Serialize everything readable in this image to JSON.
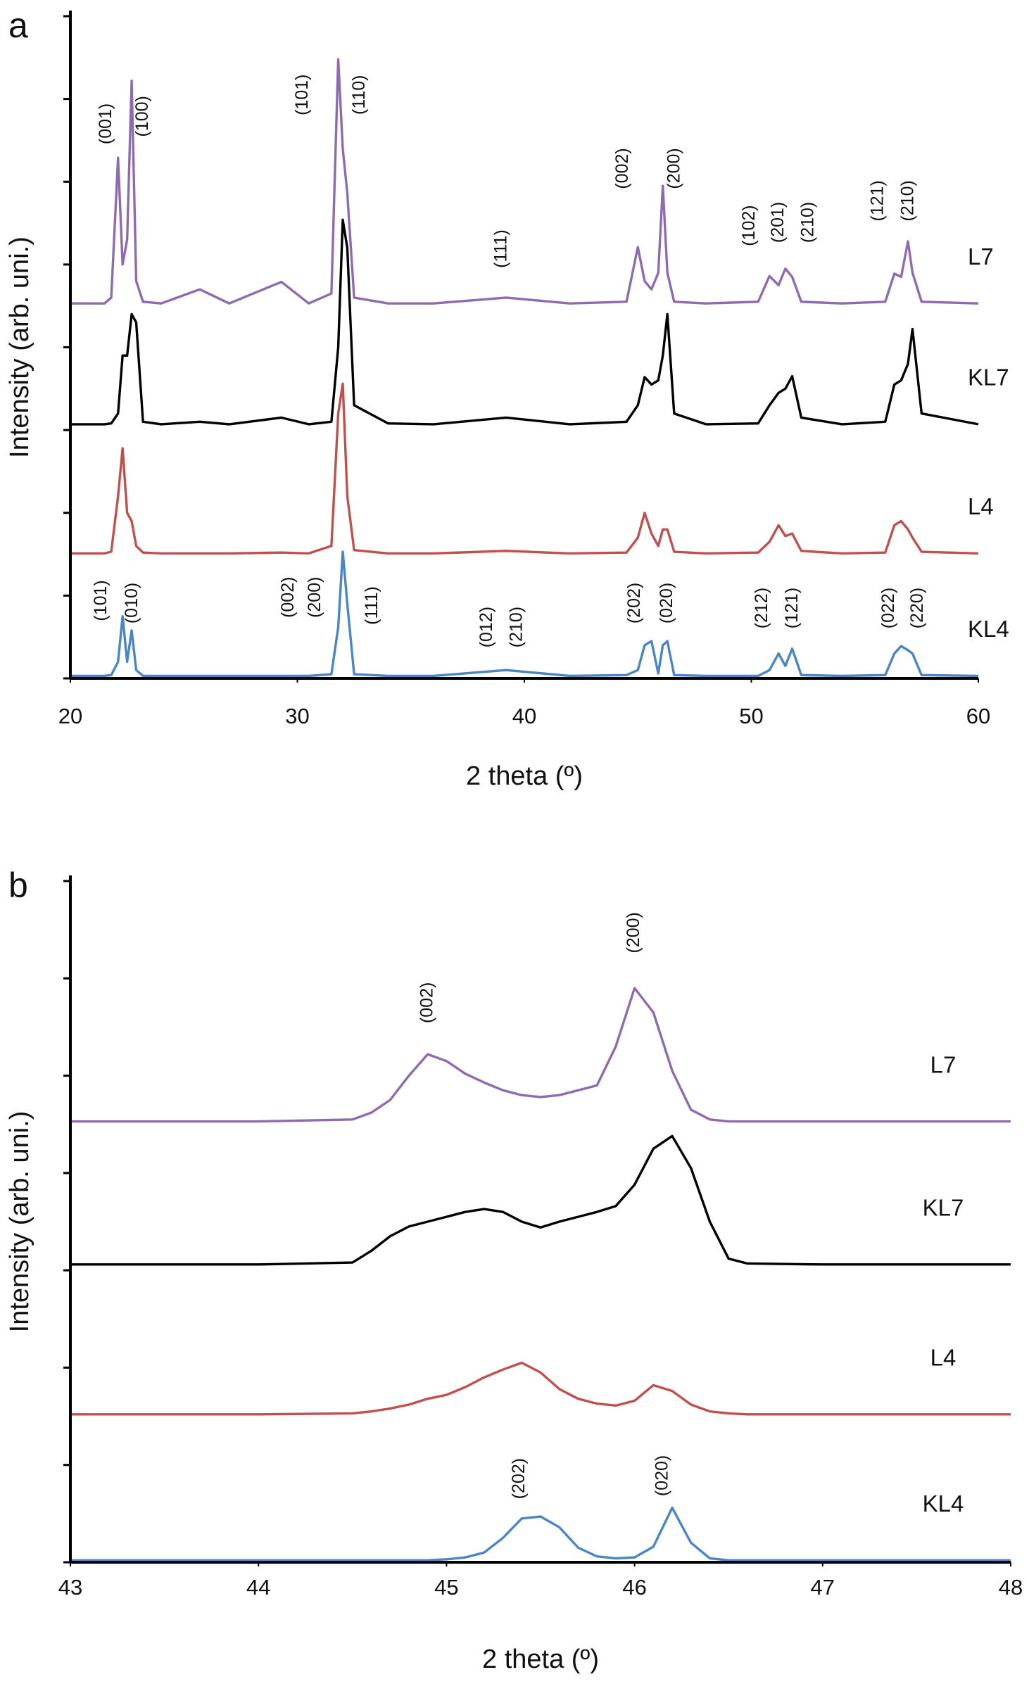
{
  "chart_data": [
    {
      "type": "line",
      "panel_label": "a",
      "y_label": "Intensity (arb. uni.)",
      "x_label": "2 theta (º)",
      "xlim": [
        20,
        60
      ],
      "xticks": [
        20,
        30,
        40,
        50,
        60
      ],
      "ylim": [
        0,
        8
      ],
      "yticks": [
        0,
        1,
        2,
        3,
        4,
        5,
        6,
        7,
        8
      ],
      "x": [
        20,
        21.5,
        21.8,
        22.1,
        22.3,
        22.5,
        22.7,
        22.9,
        23.2,
        24,
        25.7,
        27,
        29.3,
        30.5,
        31.5,
        31.8,
        32.0,
        32.2,
        32.5,
        34,
        36,
        39.2,
        42,
        44.5,
        45.0,
        45.3,
        45.6,
        45.9,
        46.1,
        46.3,
        46.6,
        48,
        50.3,
        50.8,
        51.2,
        51.5,
        51.8,
        52.2,
        54,
        55.9,
        56.3,
        56.6,
        56.9,
        57.1,
        57.5,
        60
      ],
      "series": [
        {
          "name": "L7",
          "color": "#8e6bb0",
          "values": [
            4.53,
            4.53,
            4.6,
            6.29,
            5.0,
            5.3,
            7.22,
            4.8,
            4.55,
            4.53,
            4.7,
            4.53,
            4.79,
            4.53,
            4.65,
            7.48,
            6.4,
            5.86,
            4.6,
            4.53,
            4.53,
            4.6,
            4.53,
            4.55,
            5.21,
            4.8,
            4.7,
            4.9,
            5.95,
            4.9,
            4.55,
            4.53,
            4.55,
            4.86,
            4.75,
            4.95,
            4.85,
            4.55,
            4.53,
            4.55,
            4.89,
            4.85,
            5.28,
            4.9,
            4.55,
            4.53
          ]
        },
        {
          "name": "KL7",
          "color": "#000000",
          "values": [
            3.07,
            3.07,
            3.08,
            3.2,
            3.9,
            3.9,
            4.4,
            4.3,
            3.1,
            3.07,
            3.1,
            3.07,
            3.15,
            3.07,
            3.1,
            4.0,
            5.54,
            5.2,
            3.3,
            3.08,
            3.07,
            3.15,
            3.07,
            3.1,
            3.3,
            3.64,
            3.55,
            3.6,
            3.9,
            4.4,
            3.2,
            3.07,
            3.08,
            3.3,
            3.45,
            3.5,
            3.65,
            3.15,
            3.07,
            3.1,
            3.55,
            3.6,
            3.8,
            4.22,
            3.2,
            3.07
          ]
        },
        {
          "name": "L4",
          "color": "#c0504d",
          "values": [
            1.51,
            1.51,
            1.53,
            2.2,
            2.78,
            2.0,
            1.9,
            1.6,
            1.52,
            1.51,
            1.51,
            1.51,
            1.52,
            1.51,
            1.6,
            3.2,
            3.56,
            2.2,
            1.55,
            1.51,
            1.51,
            1.54,
            1.51,
            1.52,
            1.7,
            2.0,
            1.75,
            1.6,
            1.8,
            1.8,
            1.53,
            1.51,
            1.52,
            1.65,
            1.85,
            1.72,
            1.75,
            1.54,
            1.51,
            1.52,
            1.85,
            1.9,
            1.8,
            1.7,
            1.53,
            1.51
          ]
        },
        {
          "name": "KL4",
          "color": "#4a86c5",
          "values": [
            0.03,
            0.03,
            0.04,
            0.2,
            0.75,
            0.2,
            0.58,
            0.1,
            0.03,
            0.03,
            0.03,
            0.03,
            0.03,
            0.03,
            0.05,
            0.62,
            1.53,
            0.9,
            0.05,
            0.03,
            0.03,
            0.1,
            0.03,
            0.04,
            0.1,
            0.4,
            0.45,
            0.06,
            0.4,
            0.45,
            0.04,
            0.03,
            0.03,
            0.1,
            0.3,
            0.15,
            0.36,
            0.04,
            0.03,
            0.04,
            0.3,
            0.39,
            0.34,
            0.3,
            0.04,
            0.03
          ]
        }
      ],
      "annotations": [
        {
          "text": "(001)",
          "x": 21.6,
          "y": 6.7
        },
        {
          "text": "(100)",
          "x": 23.2,
          "y": 6.79
        },
        {
          "text": "(101)",
          "x": 30.25,
          "y": 7.05
        },
        {
          "text": "(110)",
          "x": 32.75,
          "y": 7.05
        },
        {
          "text": "(111)",
          "x": 39.0,
          "y": 5.19
        },
        {
          "text": "(002)",
          "x": 44.36,
          "y": 6.16
        },
        {
          "text": "(200)",
          "x": 46.63,
          "y": 6.16
        },
        {
          "text": "(102)",
          "x": 49.93,
          "y": 5.47
        },
        {
          "text": "(201)",
          "x": 51.2,
          "y": 5.51
        },
        {
          "text": "(210)",
          "x": 52.53,
          "y": 5.51
        },
        {
          "text": "(121)",
          "x": 55.6,
          "y": 5.77
        },
        {
          "text": "(210)",
          "x": 56.92,
          "y": 5.77
        },
        {
          "text": "(101)",
          "x": 21.37,
          "y": 0.94
        },
        {
          "text": "(010)",
          "x": 22.74,
          "y": 0.91
        },
        {
          "text": "(002)",
          "x": 29.63,
          "y": 0.98
        },
        {
          "text": "(200)",
          "x": 30.81,
          "y": 0.98
        },
        {
          "text": "(111)",
          "x": 33.31,
          "y": 0.88
        },
        {
          "text": "(012)",
          "x": 38.37,
          "y": 0.62
        },
        {
          "text": "(210)",
          "x": 39.69,
          "y": 0.62
        },
        {
          "text": "(202)",
          "x": 44.88,
          "y": 0.91
        },
        {
          "text": "(020)",
          "x": 46.3,
          "y": 0.91
        },
        {
          "text": "(212)",
          "x": 50.5,
          "y": 0.85
        },
        {
          "text": "(121)",
          "x": 51.82,
          "y": 0.85
        },
        {
          "text": "(022)",
          "x": 56.07,
          "y": 0.85
        },
        {
          "text": "(220)",
          "x": 57.35,
          "y": 0.85
        }
      ]
    },
    {
      "type": "line",
      "panel_label": "b",
      "y_label": "Intensity (arb. uni.)",
      "x_label": "2 theta (º)",
      "xlim": [
        43,
        48
      ],
      "xticks": [
        43,
        44,
        45,
        46,
        47,
        48
      ],
      "ylim": [
        0,
        7
      ],
      "yticks": [
        0,
        1,
        2,
        3,
        4,
        5,
        6,
        7
      ],
      "x": [
        43,
        44,
        44.5,
        44.6,
        44.7,
        44.8,
        44.9,
        45.0,
        45.1,
        45.2,
        45.3,
        45.4,
        45.5,
        45.6,
        45.7,
        45.8,
        45.9,
        46.0,
        46.1,
        46.2,
        46.3,
        46.4,
        46.5,
        46.6,
        47,
        48
      ],
      "series": [
        {
          "name": "L7",
          "color": "#8e6bb0",
          "values": [
            4.53,
            4.53,
            4.55,
            4.62,
            4.75,
            5.0,
            5.22,
            5.15,
            5.02,
            4.93,
            4.85,
            4.8,
            4.78,
            4.8,
            4.85,
            4.9,
            5.3,
            5.9,
            5.65,
            5.05,
            4.65,
            4.55,
            4.53,
            4.53,
            4.53,
            4.53
          ]
        },
        {
          "name": "KL7",
          "color": "#000000",
          "values": [
            3.06,
            3.06,
            3.08,
            3.2,
            3.35,
            3.45,
            3.5,
            3.55,
            3.6,
            3.63,
            3.6,
            3.5,
            3.44,
            3.5,
            3.55,
            3.6,
            3.66,
            3.88,
            4.25,
            4.38,
            4.05,
            3.5,
            3.12,
            3.07,
            3.06,
            3.06
          ]
        },
        {
          "name": "L4",
          "color": "#c0504d",
          "values": [
            1.52,
            1.52,
            1.53,
            1.55,
            1.58,
            1.62,
            1.68,
            1.72,
            1.8,
            1.9,
            1.98,
            2.05,
            1.95,
            1.78,
            1.68,
            1.63,
            1.61,
            1.66,
            1.82,
            1.76,
            1.62,
            1.55,
            1.53,
            1.52,
            1.52,
            1.52
          ]
        },
        {
          "name": "KL4",
          "color": "#4a86c5",
          "values": [
            0.02,
            0.02,
            0.02,
            0.02,
            0.02,
            0.02,
            0.02,
            0.03,
            0.05,
            0.1,
            0.25,
            0.45,
            0.47,
            0.36,
            0.15,
            0.06,
            0.04,
            0.05,
            0.16,
            0.56,
            0.2,
            0.04,
            0.02,
            0.02,
            0.02,
            0.02
          ]
        }
      ],
      "annotations": [
        {
          "text": "(002)",
          "x": 44.9,
          "y": 5.75
        },
        {
          "text": "(200)",
          "x": 46.0,
          "y": 6.47
        },
        {
          "text": "(202)",
          "x": 45.39,
          "y": 0.86
        },
        {
          "text": "(020)",
          "x": 46.15,
          "y": 0.89
        }
      ]
    }
  ]
}
